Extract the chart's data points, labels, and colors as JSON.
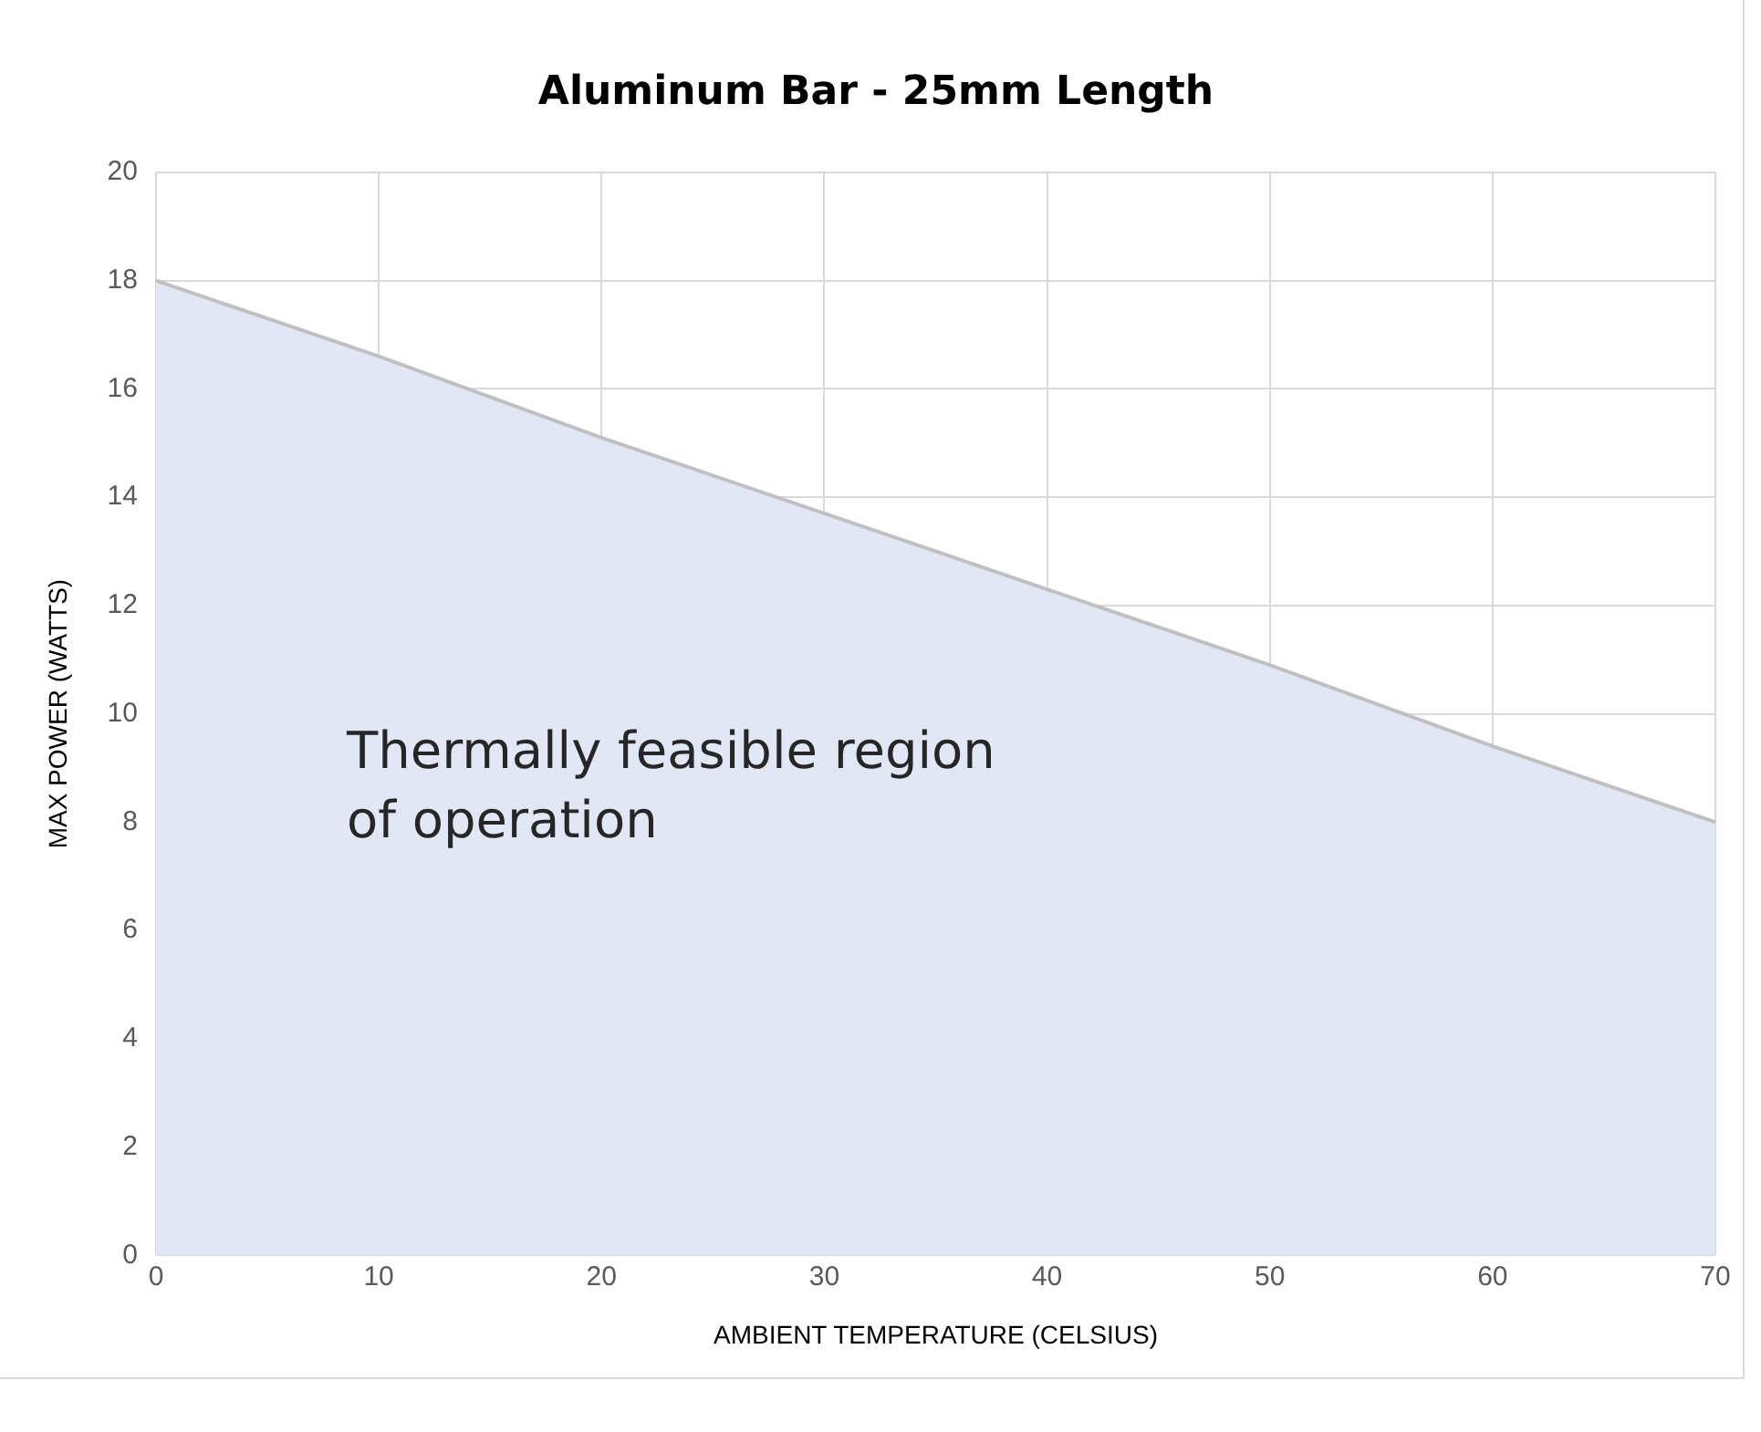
{
  "chart_data": {
    "type": "area",
    "title": "Aluminum Bar - 25mm Length",
    "xlabel": "AMBIENT TEMPERATURE (CELSIUS)",
    "ylabel": "MAX POWER (WATTS)",
    "x": [
      0,
      10,
      20,
      30,
      40,
      50,
      60,
      70
    ],
    "series": [
      {
        "color": "#e1e7f4",
        "values": [
          18,
          16.6,
          15.1,
          13.7,
          12.3,
          10.9,
          9.4,
          8
        ]
      }
    ],
    "xlim": [
      0,
      70
    ],
    "xticks": [
      0,
      10,
      20,
      30,
      40,
      50,
      60,
      70
    ],
    "ylim": [
      0,
      20
    ],
    "yticks": [
      0,
      2,
      4,
      6,
      8,
      10,
      12,
      14,
      16,
      18,
      20
    ],
    "grid": true,
    "annotations": [
      "Thermally feasible region of operation"
    ]
  }
}
